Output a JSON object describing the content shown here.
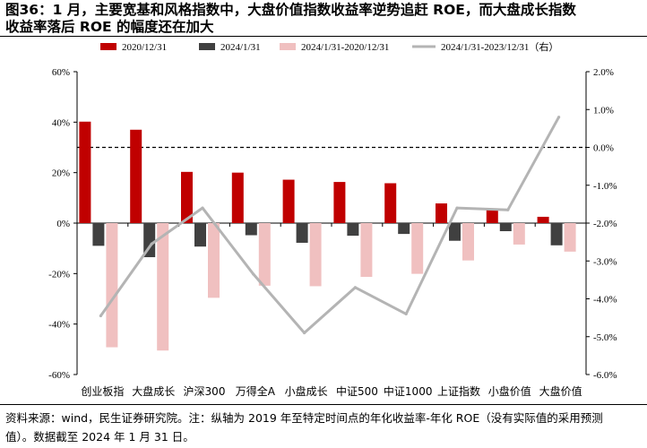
{
  "title": "图36：1 月，主要宽基和风格指数中，大盘价值指数收益率逆势追赶 ROE，而大盘成长指数\n收益率落后 ROE 的幅度还在加大",
  "note": "资料来源：wind，民生证券研究院。注：纵轴为 2019 年至特定时间点的年化收益率-年化 ROE（没有实际值的采用预测\n值）。数据截至 2024 年 1 月 31 日。",
  "chart_data": {
    "type": "bar",
    "categories": [
      "创业板指",
      "大盘成长",
      "沪深300",
      "万得全A",
      "小盘成长",
      "中证500",
      "中证1000",
      "上证指数",
      "小盘价值",
      "大盘价值"
    ],
    "series": [
      {
        "name": "2020/12/31",
        "type": "bar",
        "axis": "left",
        "color": "#c00000",
        "values": [
          40.2,
          37.0,
          20.3,
          20.0,
          17.2,
          16.3,
          15.8,
          7.8,
          5.3,
          2.5
        ]
      },
      {
        "name": "2024/1/31",
        "type": "bar",
        "axis": "left",
        "color": "#404040",
        "values": [
          -9.0,
          -13.5,
          -9.3,
          -4.8,
          -7.8,
          -5.0,
          -4.3,
          -7.0,
          -3.2,
          -8.8
        ]
      },
      {
        "name": "2024/1/31-2020/12/31",
        "type": "bar",
        "axis": "left",
        "color": "#f0c0c0",
        "values": [
          -49.2,
          -50.5,
          -29.6,
          -24.8,
          -25.0,
          -21.3,
          -20.1,
          -14.8,
          -8.5,
          -11.3
        ]
      },
      {
        "name": "2024/1/31-2023/12/31（右）",
        "type": "line",
        "axis": "right",
        "color": "#b4b4b4",
        "values": [
          -4.45,
          -2.55,
          -1.6,
          -3.35,
          -4.9,
          -3.7,
          -4.4,
          -1.6,
          -1.65,
          0.8
        ]
      }
    ],
    "y_left": {
      "min": -60,
      "max": 60,
      "step": 20,
      "unit": "%",
      "tick_labels": [
        "-60%",
        "-40%",
        "-20%",
        "0%",
        "20%",
        "40%",
        "60%"
      ]
    },
    "y_right": {
      "min": -6,
      "max": 2,
      "step": 1,
      "unit": "%",
      "tick_labels": [
        "-6.0%",
        "-5.0%",
        "-4.0%",
        "-3.0%",
        "-2.0%",
        "-1.0%",
        "0.0%",
        "1.0%",
        "2.0%"
      ]
    },
    "reference_line": {
      "axis": "right",
      "value": 0,
      "style": "dashed"
    },
    "legend_position": "top",
    "grid": false
  }
}
